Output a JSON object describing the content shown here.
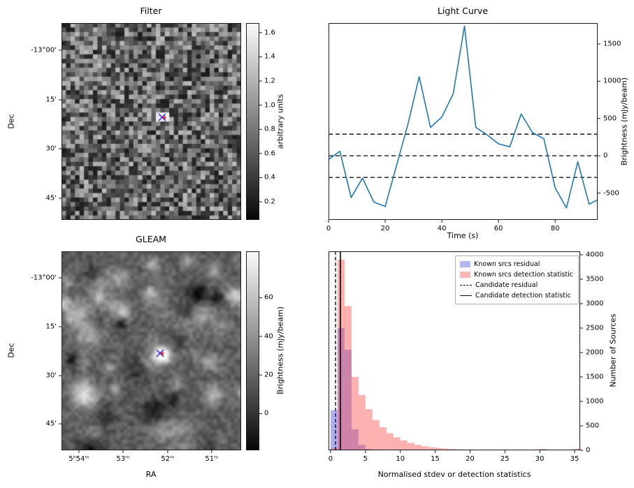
{
  "chart_data": [
    {
      "id": "filter",
      "type": "heatmap",
      "title": "Filter",
      "ylabel": "Dec",
      "ytick_labels": [
        "-13°00'",
        "15'",
        "30'",
        "45'"
      ],
      "colorbar": {
        "label": "arbitrary units",
        "ticks": [
          "1.6",
          "1.4",
          "1.2",
          "1.0",
          "0.8",
          "0.6",
          "0.4",
          "0.2"
        ],
        "vmin": 0.05,
        "vmax": 1.68
      },
      "marker": {
        "shape": "x",
        "color": "#2a2ad4",
        "dot_color": "#d42a2a"
      },
      "description": "blocky grayscale noise cutout with bright source patch at centre marked by blue x and red dot"
    },
    {
      "id": "light_curve",
      "type": "line",
      "title": "Light Curve",
      "xlabel": "Time (s)",
      "ylabel": "Brightness (mJy/beam)",
      "line_color": "#1f77b4",
      "x": [
        0,
        4,
        8,
        12,
        16,
        20,
        24,
        28,
        32,
        36,
        40,
        44,
        48,
        52,
        56,
        60,
        64,
        68,
        72,
        76,
        80,
        84,
        88,
        92,
        95
      ],
      "y": [
        -50,
        60,
        -560,
        -300,
        -620,
        -680,
        -130,
        420,
        1060,
        380,
        520,
        830,
        1740,
        380,
        280,
        160,
        120,
        560,
        310,
        230,
        -430,
        -700,
        -80,
        -650,
        -590
      ],
      "threshold_lines": [
        290,
        0,
        -290
      ],
      "xticks": [
        0,
        20,
        40,
        60,
        80
      ],
      "yticks": [
        -500,
        0,
        500,
        1000,
        1500
      ],
      "xlim": [
        0,
        95
      ],
      "ylim": [
        -860,
        1780
      ]
    },
    {
      "id": "gleam",
      "type": "heatmap",
      "title": "GLEAM",
      "xlabel": "RA",
      "ylabel": "Dec",
      "xtick_labels": [
        "5ʰ54ᵐ",
        "53ᵐ",
        "52ᵐ",
        "51ᵐ"
      ],
      "ytick_labels": [
        "-13°00'",
        "15'",
        "30'",
        "45'"
      ],
      "colorbar": {
        "label": "Brightness (mJy/beam)",
        "ticks": [
          "60",
          "40",
          "20",
          "0"
        ],
        "vmin": -19,
        "vmax": 84
      },
      "marker": {
        "shape": "x",
        "color": "#2a2ad4",
        "dot_color": "#d42a2a"
      },
      "description": "smooth grayscale radio sky map with several bright point sources, brightest at centre marked by blue x and red dot"
    },
    {
      "id": "histogram",
      "type": "bar",
      "title": "",
      "xlabel": "Normalised stdev or detection statistics",
      "ylabel": "Number of Sources",
      "bin_start": 0,
      "bin_width": 1,
      "series": [
        {
          "name": "Known srcs residual",
          "color": "rgba(75,75,225,0.45)",
          "values": [
            820,
            2500,
            2060,
            430,
            110,
            28,
            8,
            3,
            1,
            1,
            0,
            0,
            0,
            0,
            0,
            0,
            0,
            0,
            0,
            0,
            0,
            0,
            0,
            0,
            0,
            0,
            0,
            0,
            0,
            0,
            0,
            0,
            0,
            0,
            0,
            0
          ]
        },
        {
          "name": "Known srcs detection statistic",
          "color": "rgba(250,80,80,0.45)",
          "values": [
            40,
            3900,
            2950,
            1500,
            1130,
            840,
            620,
            470,
            350,
            265,
            200,
            150,
            112,
            84,
            63,
            48,
            36,
            27,
            20,
            15,
            12,
            9,
            7,
            5,
            4,
            3,
            3,
            2,
            2,
            2,
            28,
            2,
            1,
            1,
            1,
            32
          ]
        }
      ],
      "vlines": [
        {
          "name": "Candidate residual",
          "x": 0.7,
          "style": "dashed"
        },
        {
          "name": "Candidate detection statistic",
          "x": 1.4,
          "style": "solid"
        }
      ],
      "xticks": [
        0,
        5,
        10,
        15,
        20,
        25,
        30,
        35
      ],
      "yticks": [
        0,
        500,
        1000,
        1500,
        2000,
        2500,
        3000,
        3500,
        4000
      ],
      "xlim": [
        -0.3,
        35.8
      ],
      "ylim": [
        0,
        4070
      ],
      "legend": [
        {
          "label": "Known srcs residual",
          "swatch": "patch",
          "color": "#b6b6ef"
        },
        {
          "label": "Known srcs detection statistic",
          "swatch": "patch",
          "color": "#fbb7b7"
        },
        {
          "label": "Candidate residual",
          "swatch": "dashed-line",
          "color": "#000000"
        },
        {
          "label": "Candidate detection statistic",
          "swatch": "solid-line",
          "color": "#000000"
        }
      ]
    }
  ]
}
